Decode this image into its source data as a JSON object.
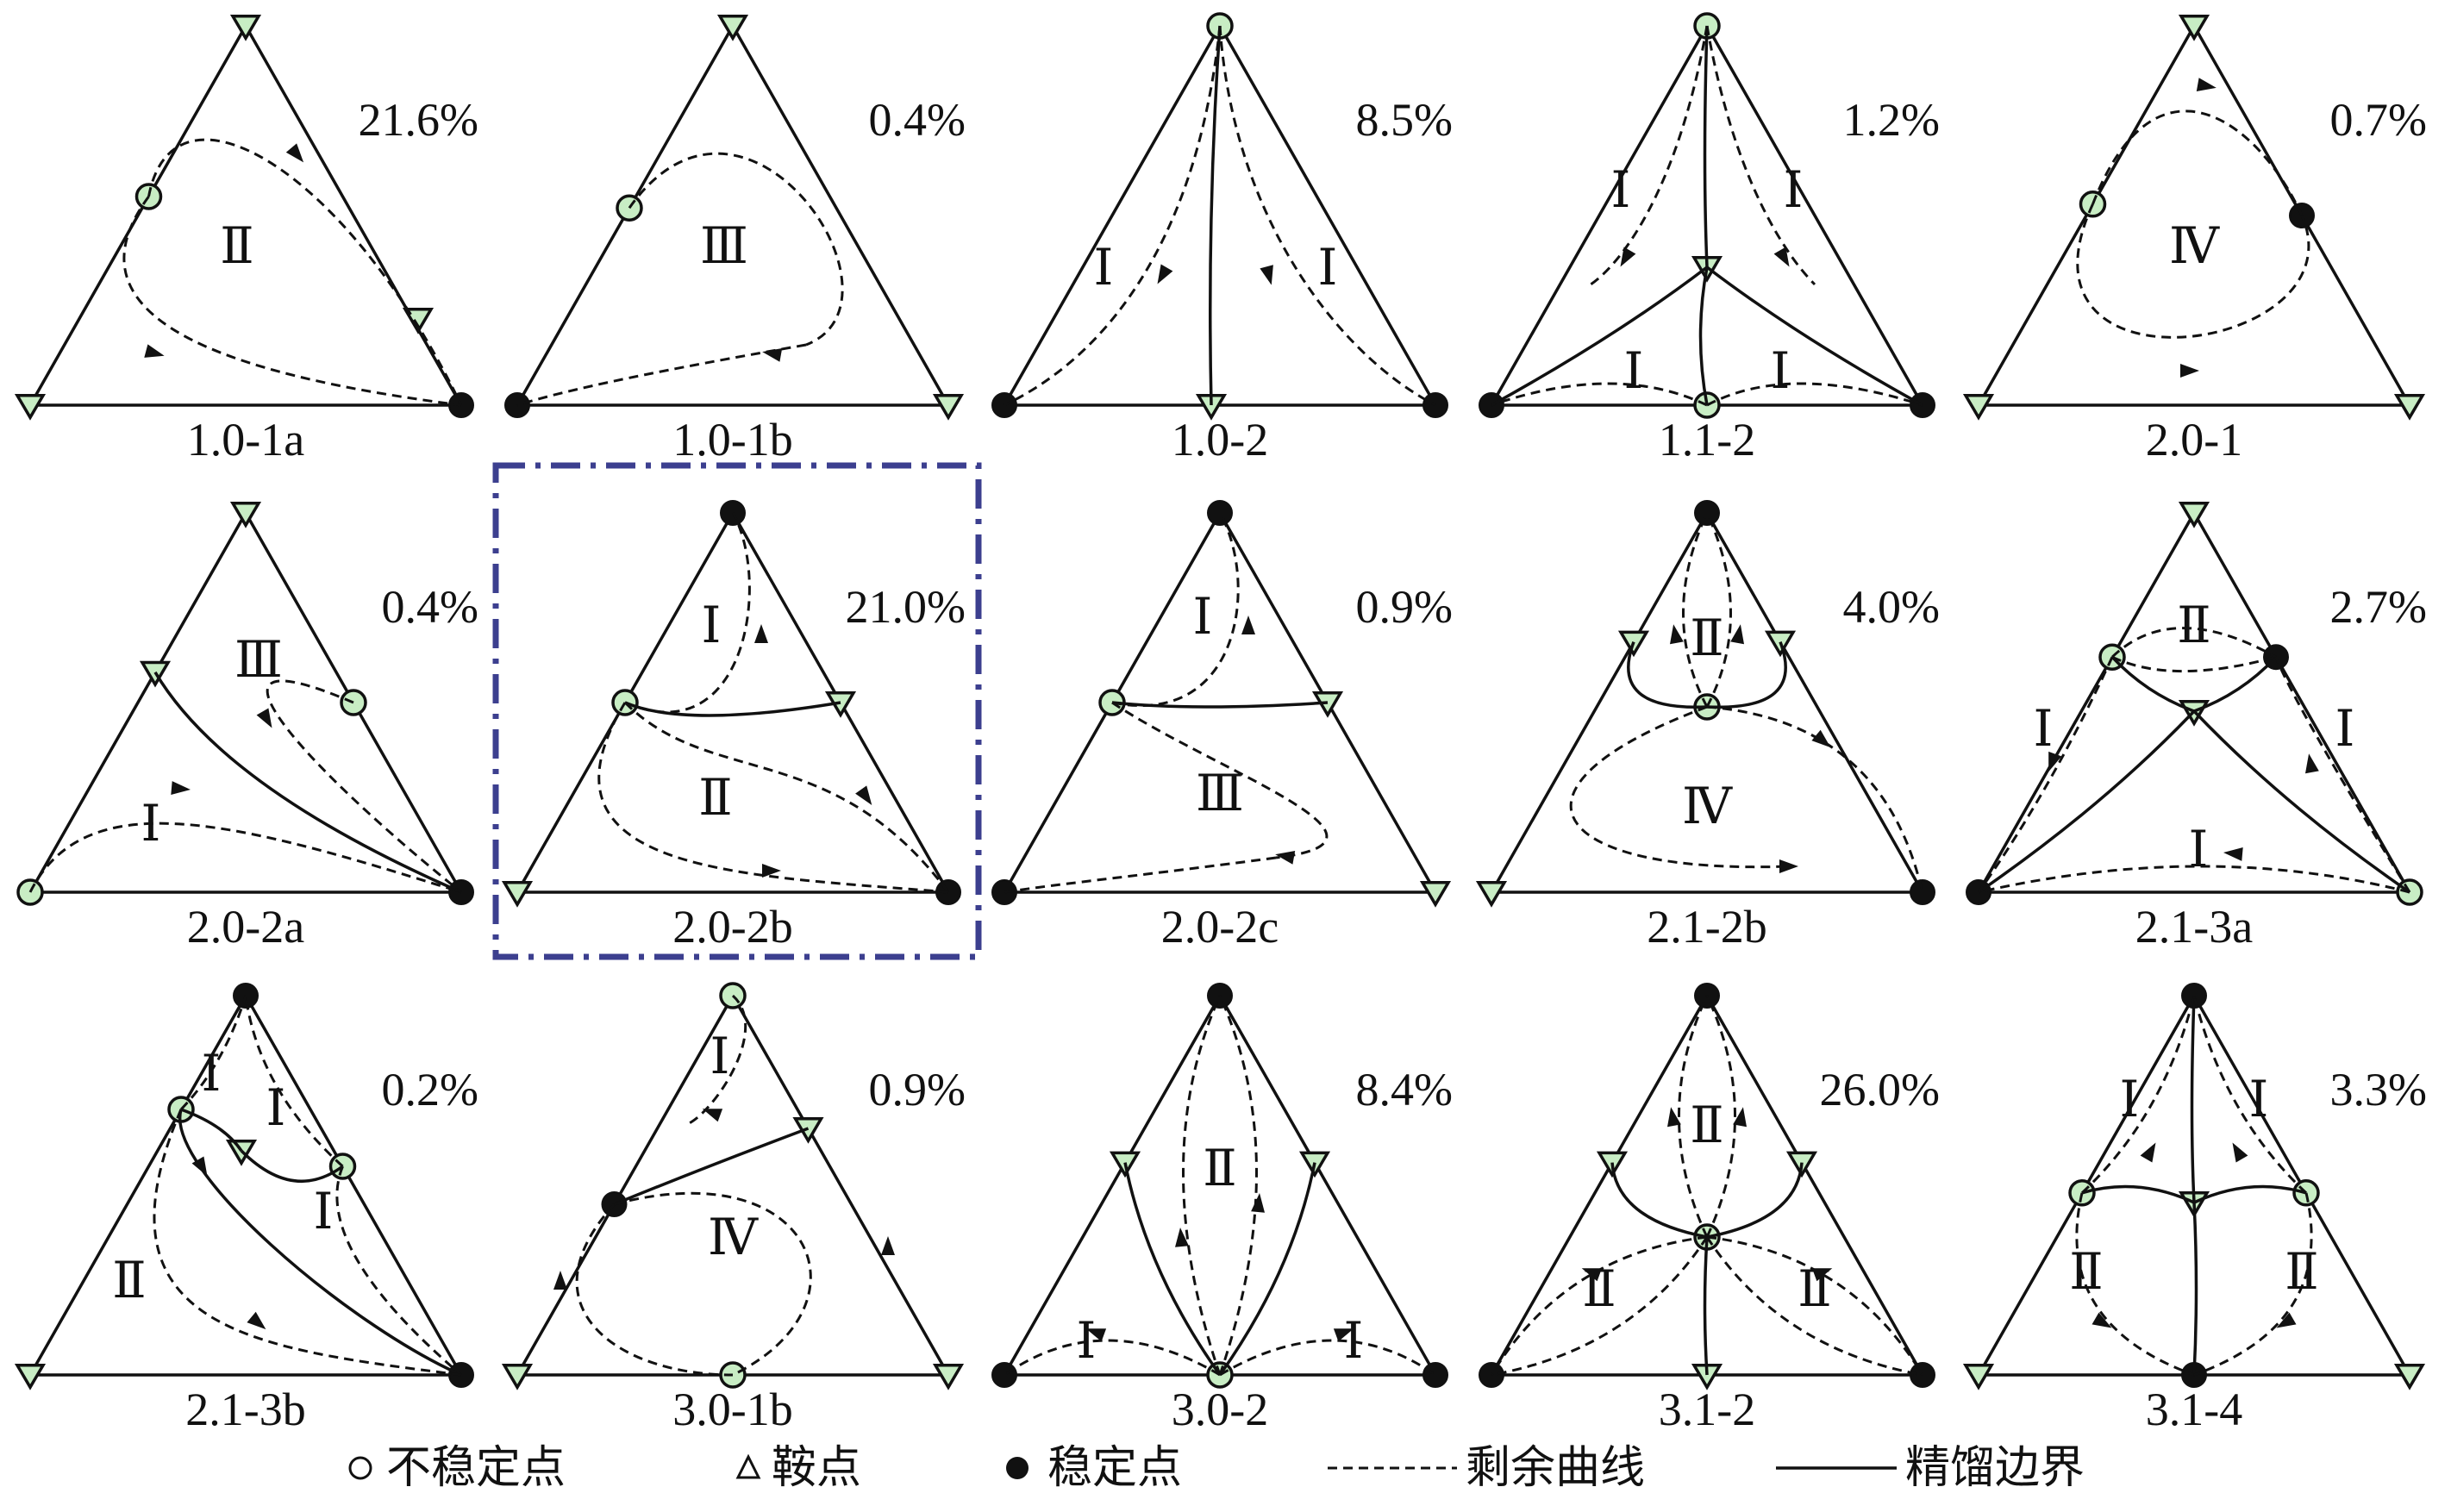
{
  "legend": {
    "unstable_symbol": "○",
    "unstable_label": "不稳定点",
    "saddle_symbol": "Δ",
    "saddle_label": "鞍点",
    "stable_symbol": "●",
    "stable_label": "稳定点",
    "residue_label": "剩余曲线",
    "boundary_label": "精馏边界"
  },
  "colors": {
    "node_fill": "#c8edc4",
    "stroke": "#111111",
    "highlight": "#3c3f8f"
  },
  "highlighted_panel": "2.0-2b",
  "panels": [
    {
      "code": "1.0-1a",
      "pct": "21.6%"
    },
    {
      "code": "1.0-1b",
      "pct": "0.4%"
    },
    {
      "code": "1.0-2",
      "pct": "8.5%"
    },
    {
      "code": "1.1-2",
      "pct": "1.2%"
    },
    {
      "code": "2.0-1",
      "pct": "0.7%"
    },
    {
      "code": "2.0-2a",
      "pct": "0.4%"
    },
    {
      "code": "2.0-2b",
      "pct": "21.0%"
    },
    {
      "code": "2.0-2c",
      "pct": "0.9%"
    },
    {
      "code": "2.1-2b",
      "pct": "4.0%"
    },
    {
      "code": "2.1-3a",
      "pct": "2.7%"
    },
    {
      "code": "2.1-3b",
      "pct": "0.2%"
    },
    {
      "code": "3.0-1b",
      "pct": "0.9%"
    },
    {
      "code": "3.0-2",
      "pct": "8.4%"
    },
    {
      "code": "3.1-2",
      "pct": "26.0%"
    },
    {
      "code": "3.1-4",
      "pct": "3.3%"
    }
  ]
}
